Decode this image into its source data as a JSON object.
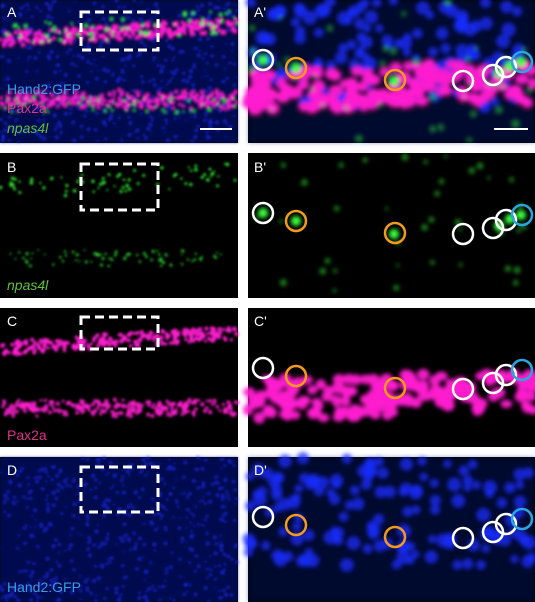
{
  "panels": [
    {
      "label": "A",
      "inset_label": "A'",
      "channels": [
        "Hand2:GFP",
        "Pax2a",
        "npas4l"
      ]
    },
    {
      "label": "B",
      "inset_label": "B'",
      "channels": [
        "npas4l"
      ]
    },
    {
      "label": "C",
      "inset_label": "C'",
      "channels": [
        "Pax2a"
      ]
    },
    {
      "label": "D",
      "inset_label": "D'",
      "channels": [
        "Hand2:GFP"
      ]
    }
  ]
}
